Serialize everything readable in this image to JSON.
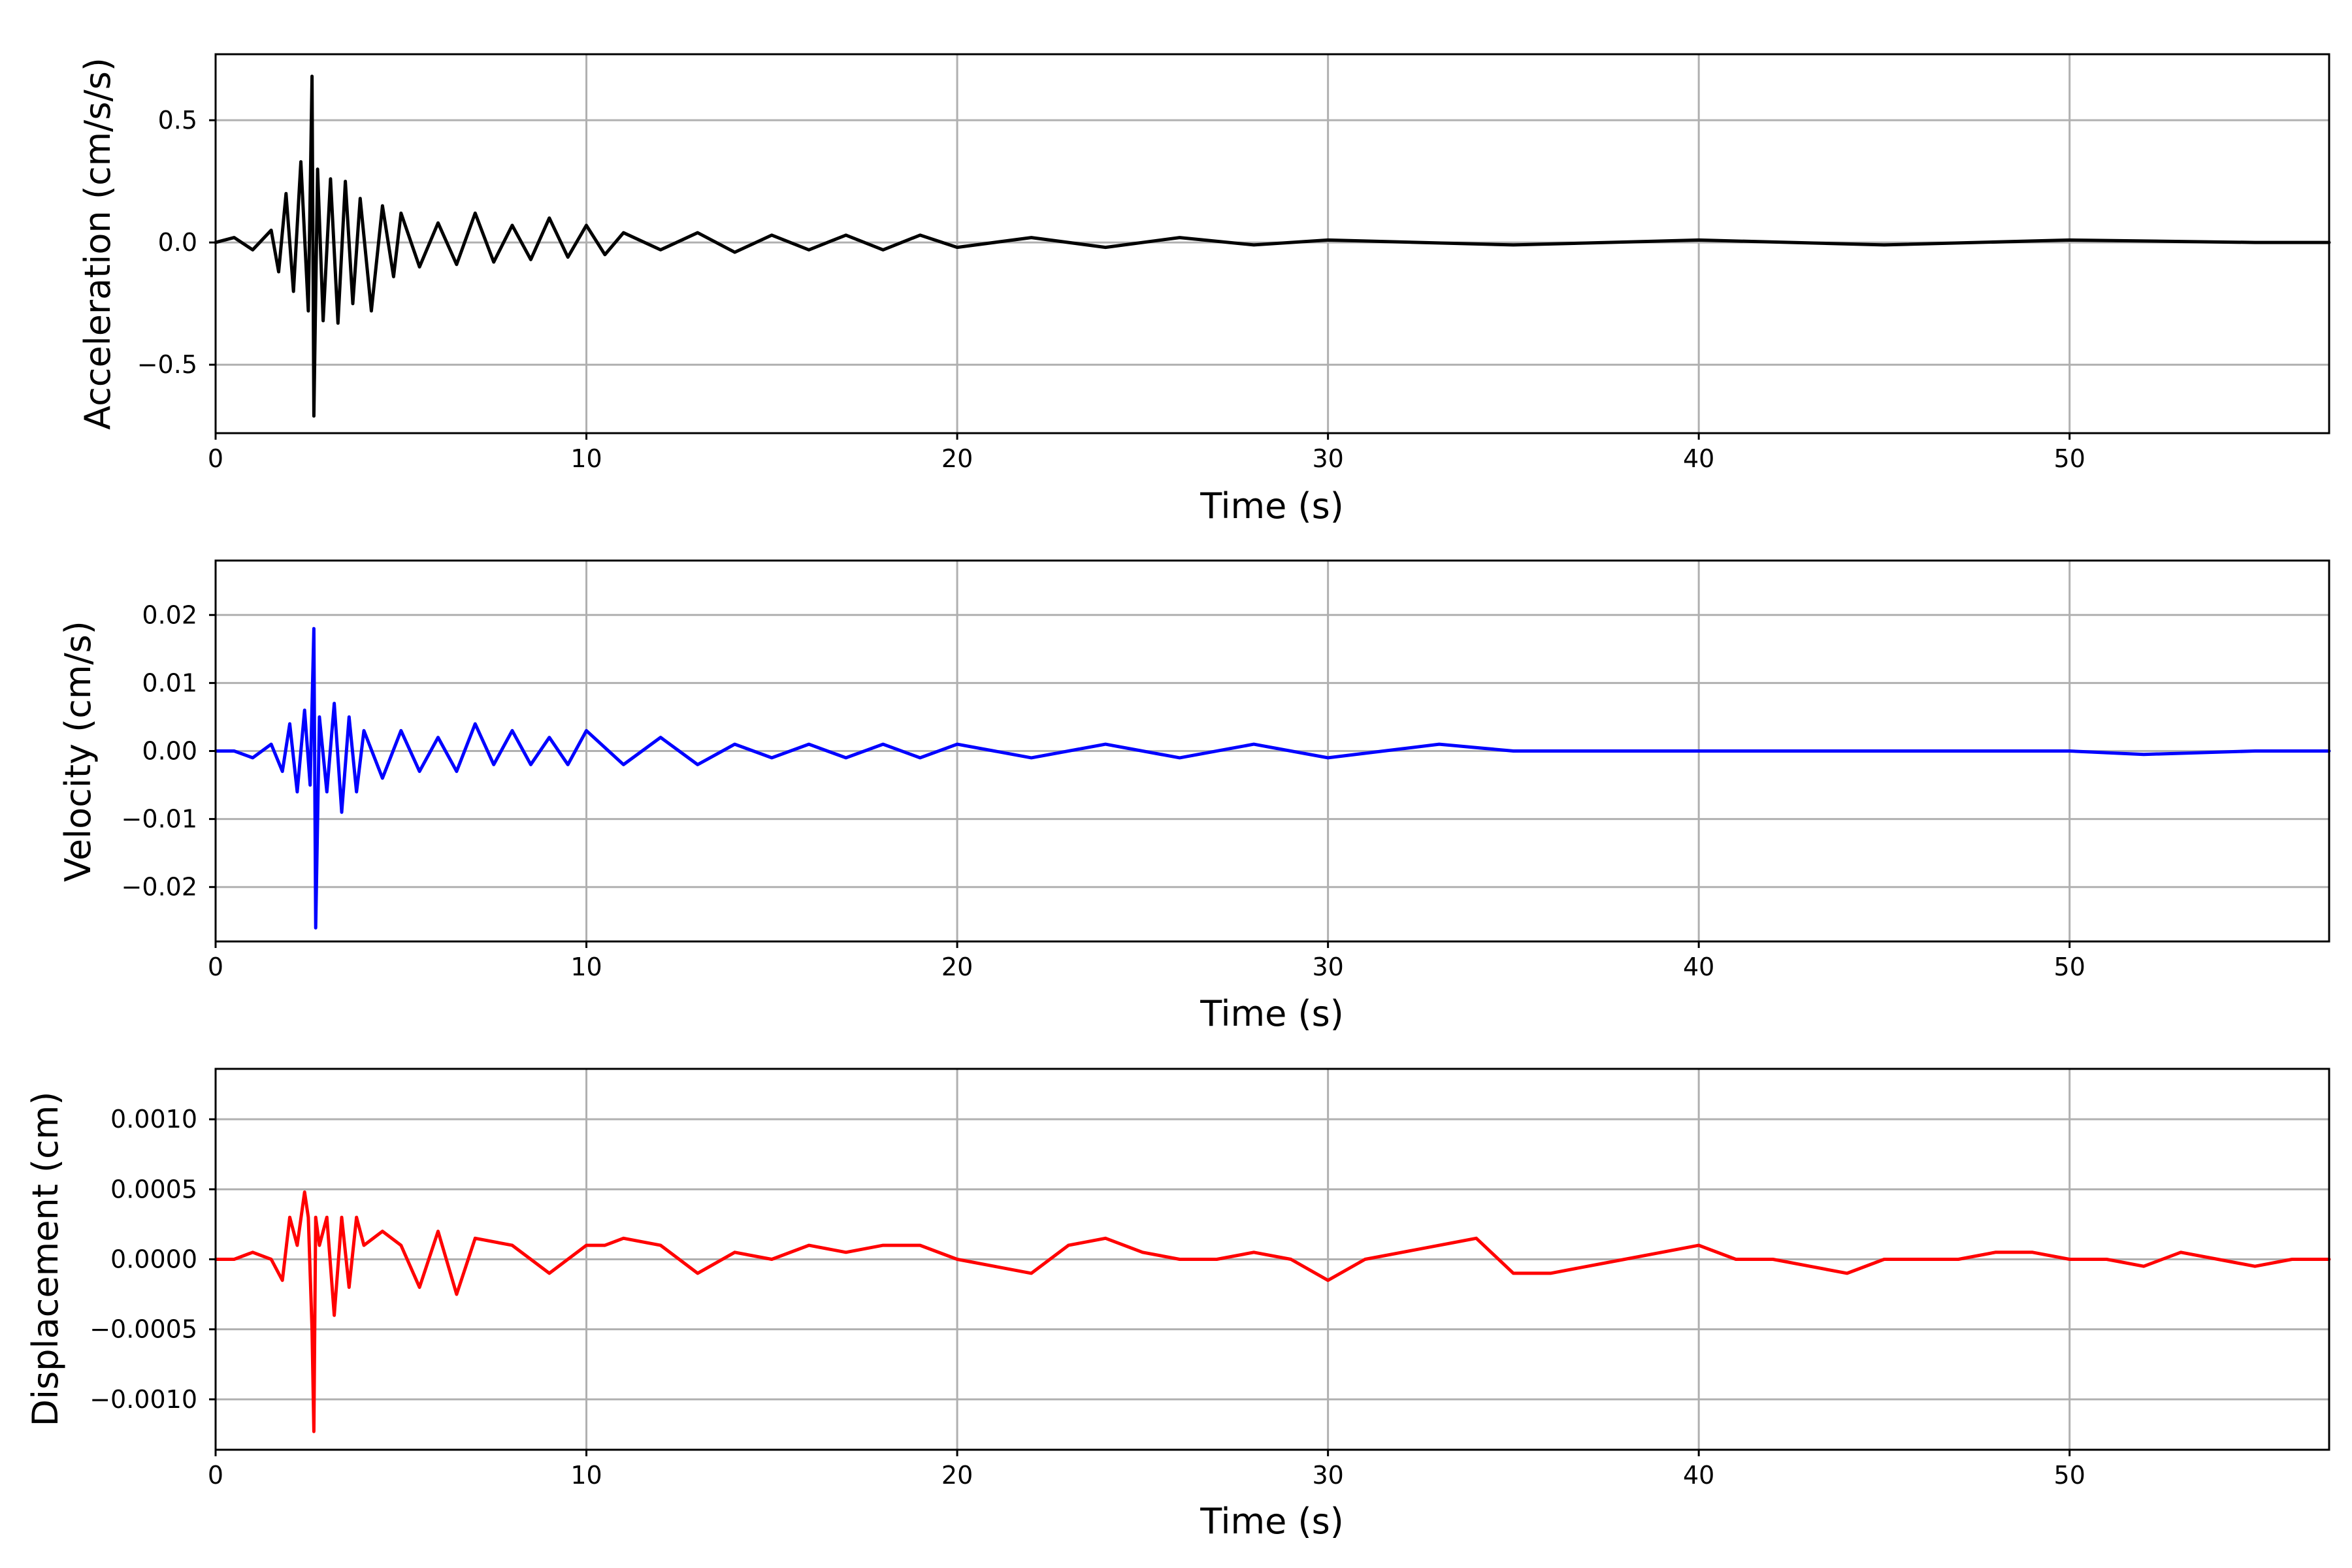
{
  "colors": {
    "acceleration": "#000000",
    "velocity": "#0000ff",
    "displacement": "#ff0000",
    "grid": "#b0b0b0"
  },
  "chart_data": [
    {
      "type": "line",
      "xlabel": "Time (s)",
      "ylabel": "Acceleration (cm/s/s)",
      "xlim": [
        0,
        57
      ],
      "ylim": [
        -0.78,
        0.77
      ],
      "xticks": [
        0,
        10,
        20,
        30,
        40,
        50
      ],
      "yticks": [
        0.5,
        0.0,
        -0.5
      ],
      "ytick_labels": [
        "0.5",
        "0.0",
        "−0.5"
      ],
      "grid": true,
      "series": [
        {
          "color": "#000000",
          "x": [
            0,
            0.5,
            1,
            1.5,
            1.7,
            1.9,
            2.1,
            2.3,
            2.5,
            2.6,
            2.65,
            2.75,
            2.9,
            3.1,
            3.3,
            3.5,
            3.7,
            3.9,
            4.2,
            4.5,
            4.8,
            5,
            5.5,
            6,
            6.5,
            7,
            7.5,
            8,
            8.5,
            9,
            9.5,
            10,
            10.5,
            11,
            12,
            13,
            14,
            15,
            16,
            17,
            18,
            19,
            20,
            22,
            24,
            26,
            28,
            30,
            35,
            40,
            45,
            50,
            55,
            57
          ],
          "y": [
            0,
            0.02,
            -0.03,
            0.05,
            -0.12,
            0.2,
            -0.2,
            0.33,
            -0.28,
            0.68,
            -0.71,
            0.3,
            -0.32,
            0.26,
            -0.33,
            0.25,
            -0.25,
            0.18,
            -0.28,
            0.15,
            -0.14,
            0.12,
            -0.1,
            0.08,
            -0.09,
            0.12,
            -0.08,
            0.07,
            -0.07,
            0.1,
            -0.06,
            0.07,
            -0.05,
            0.04,
            -0.03,
            0.04,
            -0.04,
            0.03,
            -0.03,
            0.03,
            -0.03,
            0.03,
            -0.02,
            0.02,
            -0.02,
            0.02,
            -0.01,
            0.01,
            -0.01,
            0.01,
            -0.01,
            0.01,
            0,
            0
          ]
        }
      ]
    },
    {
      "type": "line",
      "xlabel": "Time (s)",
      "ylabel": "Velocity (cm/s)",
      "xlim": [
        0,
        57
      ],
      "ylim": [
        -0.028,
        0.028
      ],
      "xticks": [
        0,
        10,
        20,
        30,
        40,
        50
      ],
      "yticks": [
        0.02,
        0.01,
        0.0,
        -0.01,
        -0.02
      ],
      "ytick_labels": [
        "0.02",
        "0.01",
        "0.00",
        "−0.01",
        "−0.02"
      ],
      "grid": true,
      "series": [
        {
          "color": "#0000ff",
          "x": [
            0,
            0.5,
            1,
            1.5,
            1.8,
            2,
            2.2,
            2.4,
            2.55,
            2.65,
            2.7,
            2.8,
            3,
            3.2,
            3.4,
            3.6,
            3.8,
            4,
            4.5,
            5,
            5.5,
            6,
            6.5,
            7,
            7.5,
            8,
            8.5,
            9,
            9.5,
            10,
            11,
            12,
            13,
            14,
            15,
            16,
            17,
            18,
            19,
            20,
            22,
            24,
            26,
            28,
            30,
            33,
            35,
            40,
            45,
            50,
            52,
            55,
            57
          ],
          "y": [
            0,
            0,
            -0.001,
            0.001,
            -0.003,
            0.004,
            -0.006,
            0.006,
            -0.005,
            0.018,
            -0.026,
            0.005,
            -0.006,
            0.007,
            -0.009,
            0.005,
            -0.006,
            0.003,
            -0.004,
            0.003,
            -0.003,
            0.002,
            -0.003,
            0.004,
            -0.002,
            0.003,
            -0.002,
            0.002,
            -0.002,
            0.003,
            -0.002,
            0.002,
            -0.002,
            0.001,
            -0.001,
            0.001,
            -0.001,
            0.001,
            -0.001,
            0.001,
            -0.001,
            0.001,
            -0.001,
            0.001,
            -0.001,
            0.001,
            0,
            0,
            0,
            0,
            -0.0005,
            0,
            0
          ]
        }
      ]
    },
    {
      "type": "line",
      "xlabel": "Time (s)",
      "ylabel": "Displacement (cm)",
      "xlim": [
        0,
        57
      ],
      "ylim": [
        -0.00136,
        0.00136
      ],
      "xticks": [
        0,
        10,
        20,
        30,
        40,
        50
      ],
      "yticks": [
        0.001,
        0.0005,
        0.0,
        -0.0005,
        -0.001
      ],
      "ytick_labels": [
        "0.0010",
        "0.0005",
        "0.0000",
        "−0.0005",
        "−0.0010"
      ],
      "grid": true,
      "series": [
        {
          "color": "#ff0000",
          "x": [
            0,
            0.5,
            1,
            1.5,
            1.8,
            2,
            2.2,
            2.4,
            2.5,
            2.6,
            2.65,
            2.7,
            2.8,
            3,
            3.2,
            3.4,
            3.6,
            3.8,
            4,
            4.5,
            5,
            5.5,
            6,
            6.5,
            7,
            8,
            9,
            10,
            10.5,
            11,
            12,
            13,
            14,
            15,
            16,
            17,
            18,
            19,
            20,
            21,
            22,
            23,
            24,
            25,
            26,
            27,
            28,
            29,
            30,
            31,
            32,
            33,
            34,
            35,
            36,
            37,
            38,
            39,
            40,
            41,
            42,
            43,
            44,
            45,
            46,
            47,
            48,
            49,
            50,
            51,
            52,
            53,
            54,
            55,
            56,
            57
          ],
          "y": [
            0,
            0,
            5e-05,
            0,
            -0.00015,
            0.0003,
            0.0001,
            0.00048,
            0.0003,
            -0.0005,
            -0.00123,
            0.0003,
            0.0001,
            0.0003,
            -0.0004,
            0.0003,
            -0.0002,
            0.0003,
            0.0001,
            0.0002,
            0.0001,
            -0.0002,
            0.0002,
            -0.00025,
            0.00015,
            0.0001,
            -0.0001,
            0.0001,
            0.0001,
            0.00015,
            0.0001,
            -0.0001,
            5e-05,
            0,
            0.0001,
            5e-05,
            0.0001,
            0.0001,
            0,
            -5e-05,
            -0.0001,
            0.0001,
            0.00015,
            5e-05,
            0,
            0,
            5e-05,
            0,
            -0.00015,
            0,
            5e-05,
            0.0001,
            0.00015,
            -0.0001,
            -0.0001,
            -5e-05,
            0,
            5e-05,
            0.0001,
            0,
            0,
            -5e-05,
            -0.0001,
            0,
            0,
            0,
            5e-05,
            5e-05,
            0,
            0,
            -5e-05,
            5e-05,
            0,
            -5e-05,
            0,
            0
          ]
        }
      ]
    }
  ]
}
